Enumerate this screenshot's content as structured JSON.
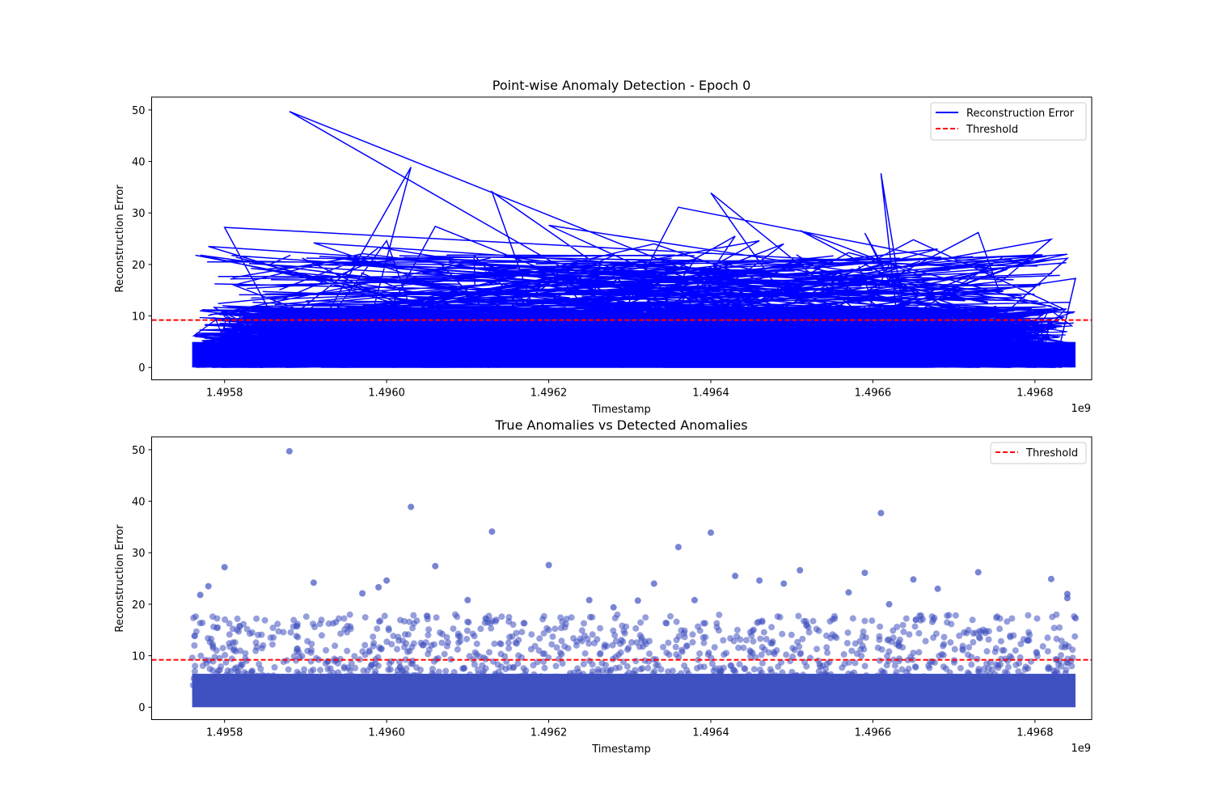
{
  "chart_data": [
    {
      "type": "line",
      "title": "Point-wise Anomaly Detection - Epoch 0",
      "xlabel": "Timestamp",
      "ylabel": "Reconstruction Error",
      "x_offset_label": "1e9",
      "xlim": [
        1.49571,
        1.49687
      ],
      "ylim": [
        -2.4,
        52.5
      ],
      "x_ticks": [
        1.4958,
        1.496,
        1.4962,
        1.4964,
        1.4966,
        1.4968
      ],
      "x_tick_labels": [
        "1.4958",
        "1.4960",
        "1.4962",
        "1.4964",
        "1.4966",
        "1.4968"
      ],
      "y_ticks": [
        0,
        10,
        20,
        30,
        40,
        50
      ],
      "y_tick_labels": [
        "0",
        "10",
        "20",
        "30",
        "40",
        "50"
      ],
      "x_range": [
        1.49576,
        1.49685
      ],
      "bulk_range": [
        0,
        9
      ],
      "n_points_estimated": 20000,
      "legend_position": "upper right",
      "grid": false,
      "series": [
        {
          "name": "Reconstruction Error",
          "color": "#0000ff",
          "style": "solid",
          "peaks": [
            [
              1.49588,
              49.7
            ],
            [
              1.49603,
              38.9
            ],
            [
              1.49613,
              34.1
            ],
            [
              1.49606,
              27.4
            ],
            [
              1.4962,
              27.6
            ],
            [
              1.4958,
              27.2
            ],
            [
              1.49577,
              21.8
            ],
            [
              1.49578,
              23.5
            ],
            [
              1.49636,
              31.1
            ],
            [
              1.4964,
              33.9
            ],
            [
              1.49661,
              37.7
            ],
            [
              1.49659,
              26.1
            ],
            [
              1.49651,
              26.6
            ],
            [
              1.49673,
              26.2
            ],
            [
              1.49682,
              24.9
            ],
            [
              1.49633,
              24.0
            ],
            [
              1.49643,
              25.5
            ],
            [
              1.49646,
              24.6
            ],
            [
              1.49665,
              24.8
            ],
            [
              1.496,
              24.6
            ],
            [
              1.49591,
              24.2
            ],
            [
              1.49668,
              23.0
            ],
            [
              1.49684,
              21.2
            ],
            [
              1.49684,
              22.0
            ],
            [
              1.4961,
              20.8
            ],
            [
              1.49625,
              20.8
            ],
            [
              1.49638,
              20.8
            ],
            [
              1.49662,
              20.0
            ],
            [
              1.49599,
              23.3
            ],
            [
              1.49597,
              22.1
            ],
            [
              1.49649,
              24.0
            ],
            [
              1.49657,
              22.3
            ],
            [
              1.49685,
              17.3
            ],
            [
              1.49631,
              20.7
            ],
            [
              1.49628,
              19.4
            ]
          ]
        },
        {
          "name": "Threshold",
          "color": "#ff0000",
          "style": "dashed",
          "value": 9.2
        }
      ]
    },
    {
      "type": "scatter",
      "title": "True Anomalies vs Detected Anomalies",
      "xlabel": "Timestamp",
      "ylabel": "Reconstruction Error",
      "x_offset_label": "1e9",
      "xlim": [
        1.49571,
        1.49687
      ],
      "ylim": [
        -2.4,
        52.5
      ],
      "x_ticks": [
        1.4958,
        1.496,
        1.4962,
        1.4964,
        1.4966,
        1.4968
      ],
      "x_tick_labels": [
        "1.4958",
        "1.4960",
        "1.4962",
        "1.4964",
        "1.4966",
        "1.4968"
      ],
      "y_ticks": [
        0,
        10,
        20,
        30,
        40,
        50
      ],
      "y_tick_labels": [
        "0",
        "10",
        "20",
        "30",
        "40",
        "50"
      ],
      "legend_position": "upper right",
      "grid": false,
      "points_color": "#3f51c0",
      "points_alpha": 0.55,
      "series": [
        {
          "name": "",
          "color": "#3f51c0",
          "points": [
            [
              1.49588,
              49.7
            ],
            [
              1.49603,
              38.9
            ],
            [
              1.49613,
              34.1
            ],
            [
              1.49606,
              27.4
            ],
            [
              1.4962,
              27.6
            ],
            [
              1.4958,
              27.2
            ],
            [
              1.49577,
              21.8
            ],
            [
              1.49578,
              23.5
            ],
            [
              1.49636,
              31.1
            ],
            [
              1.4964,
              33.9
            ],
            [
              1.49661,
              37.7
            ],
            [
              1.49659,
              26.1
            ],
            [
              1.49651,
              26.6
            ],
            [
              1.49673,
              26.2
            ],
            [
              1.49682,
              24.9
            ],
            [
              1.49633,
              24.0
            ],
            [
              1.49643,
              25.5
            ],
            [
              1.49646,
              24.6
            ],
            [
              1.49665,
              24.8
            ],
            [
              1.496,
              24.6
            ],
            [
              1.49591,
              24.2
            ],
            [
              1.49668,
              23.0
            ],
            [
              1.49684,
              21.2
            ],
            [
              1.49684,
              22.0
            ],
            [
              1.4961,
              20.8
            ],
            [
              1.49625,
              20.8
            ],
            [
              1.49638,
              20.8
            ],
            [
              1.49662,
              20.0
            ],
            [
              1.49599,
              23.3
            ],
            [
              1.49597,
              22.1
            ],
            [
              1.49649,
              24.0
            ],
            [
              1.49657,
              22.3
            ],
            [
              1.49685,
              17.3
            ],
            [
              1.49631,
              20.7
            ],
            [
              1.49628,
              19.4
            ]
          ]
        },
        {
          "name": "Threshold",
          "color": "#ff0000",
          "style": "dashed",
          "value": 9.2
        }
      ]
    }
  ]
}
